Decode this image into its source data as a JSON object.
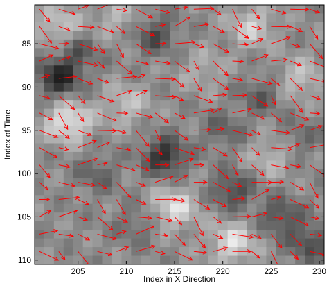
{
  "chart_data": {
    "type": "heatmap",
    "title": "",
    "xlabel": "Index in X Direction",
    "ylabel": "Index of Time",
    "xlim": [
      200.5,
      230.5
    ],
    "ylim": [
      80.5,
      110.5
    ],
    "y_direction": "reversed",
    "x_ticks": [
      205,
      210,
      215,
      220,
      225,
      230
    ],
    "y_ticks": [
      85,
      90,
      95,
      100,
      105,
      110
    ],
    "colormap": "gray",
    "grid": false,
    "overlay": {
      "type": "quiver",
      "color": "#ff0000",
      "spacing": 2,
      "dominant_direction": "rightward, tilted downward (dx ≈ 1.0, dy ≈ 0.3)"
    },
    "dark_features": [
      {
        "x": 203,
        "y": 89,
        "strength": 0.9
      },
      {
        "x": 214,
        "y": 98,
        "strength": 0.85
      },
      {
        "x": 221,
        "y": 102,
        "strength": 0.6
      },
      {
        "x": 213,
        "y": 84,
        "strength": 0.55
      },
      {
        "x": 205,
        "y": 86,
        "strength": 0.45
      },
      {
        "x": 226,
        "y": 105,
        "strength": 0.55
      },
      {
        "x": 224,
        "y": 91,
        "strength": 0.4
      },
      {
        "x": 220,
        "y": 95,
        "strength": 0.35
      },
      {
        "x": 207,
        "y": 100,
        "strength": 0.35
      },
      {
        "x": 229,
        "y": 108,
        "strength": 0.55
      },
      {
        "x": 228,
        "y": 96,
        "strength": 0.3
      },
      {
        "x": 211,
        "y": 106,
        "strength": 0.3
      }
    ],
    "bright_features": [
      {
        "x": 204,
        "y": 94,
        "strength": 0.8
      },
      {
        "x": 215,
        "y": 104,
        "strength": 0.7
      },
      {
        "x": 221,
        "y": 108,
        "strength": 0.7
      },
      {
        "x": 203,
        "y": 83,
        "strength": 0.5
      },
      {
        "x": 223,
        "y": 83,
        "strength": 0.55
      },
      {
        "x": 210,
        "y": 92,
        "strength": 0.45
      },
      {
        "x": 228,
        "y": 89,
        "strength": 0.45
      },
      {
        "x": 225,
        "y": 98,
        "strength": 0.4
      },
      {
        "x": 218,
        "y": 88,
        "strength": 0.3
      },
      {
        "x": 209,
        "y": 82,
        "strength": 0.35
      }
    ]
  }
}
